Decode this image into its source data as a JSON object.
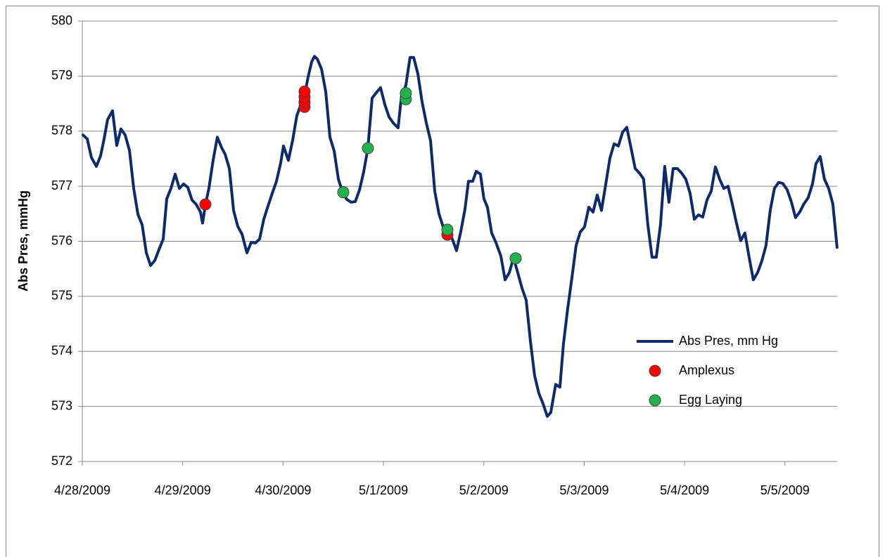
{
  "chart_data": {
    "type": "line",
    "ylabel": "Abs Pres, mmHg",
    "xlim": [
      39931,
      39938.52
    ],
    "xticks": [
      {
        "value": 39931,
        "label": "4/28/2009"
      },
      {
        "value": 39932,
        "label": "4/29/2009"
      },
      {
        "value": 39933,
        "label": "4/30/2009"
      },
      {
        "value": 39934,
        "label": "5/1/2009"
      },
      {
        "value": 39935,
        "label": "5/2/2009"
      },
      {
        "value": 39936,
        "label": "5/3/2009"
      },
      {
        "value": 39937,
        "label": "5/4/2009"
      },
      {
        "value": 39938,
        "label": "5/5/2009"
      }
    ],
    "ylim": [
      572,
      580
    ],
    "yticks": [
      572,
      573,
      574,
      575,
      576,
      577,
      578,
      579,
      580
    ],
    "grid": true,
    "legend": "right",
    "series": [
      {
        "name": "Abs Pres, mm Hg",
        "type": "line",
        "color": "#0d2a6b",
        "x": [
          39931.007,
          39931.049,
          39931.091,
          39931.14,
          39931.182,
          39931.217,
          39931.252,
          39931.301,
          39931.343,
          39931.385,
          39931.427,
          39931.47,
          39931.512,
          39931.554,
          39931.596,
          39931.638,
          39931.68,
          39931.722,
          39931.764,
          39931.806,
          39931.841,
          39931.883,
          39931.925,
          39931.967,
          39932.009,
          39932.051,
          39932.093,
          39932.135,
          39932.177,
          39932.198,
          39932.226,
          39932.261,
          39932.303,
          39932.345,
          39932.388,
          39932.423,
          39932.465,
          39932.507,
          39932.549,
          39932.591,
          39932.64,
          39932.682,
          39932.724,
          39932.766,
          39932.808,
          39932.85,
          39932.892,
          39932.934,
          39932.976,
          39933.004,
          39933.053,
          39933.095,
          39933.137,
          39933.179,
          39933.214,
          39933.249,
          39933.285,
          39933.313,
          39933.341,
          39933.383,
          39933.425,
          39933.467,
          39933.509,
          39933.551,
          39933.593,
          39933.635,
          39933.677,
          39933.719,
          39933.761,
          39933.803,
          39933.845,
          39933.887,
          39933.929,
          39933.971,
          39934.013,
          39934.055,
          39934.097,
          39934.146,
          39934.181,
          39934.223,
          39934.265,
          39934.301,
          39934.343,
          39934.385,
          39934.427,
          39934.469,
          39934.511,
          39934.553,
          39934.595,
          39934.637,
          39934.686,
          39934.728,
          39934.77,
          39934.812,
          39934.847,
          39934.889,
          39934.924,
          39934.966,
          39935.001,
          39935.036,
          39935.078,
          39935.12,
          39935.17,
          39935.212,
          39935.254,
          39935.296,
          39935.338,
          39935.38,
          39935.422,
          39935.464,
          39935.506,
          39935.548,
          39935.59,
          39935.632,
          39935.667,
          39935.716,
          39935.758,
          39935.793,
          39935.835,
          39935.877,
          39935.919,
          39935.961,
          39936.003,
          39936.046,
          39936.088,
          39936.13,
          39936.172,
          39936.214,
          39936.256,
          39936.298,
          39936.34,
          39936.382,
          39936.424,
          39936.466,
          39936.508,
          39936.55,
          39936.592,
          39936.634,
          39936.676,
          39936.718,
          39936.76,
          39936.802,
          39936.844,
          39936.886,
          39936.928,
          39936.97,
          39937.012,
          39937.055,
          39937.097,
          39937.139,
          39937.181,
          39937.223,
          39937.265,
          39937.307,
          39937.349,
          39937.391,
          39937.433,
          39937.475,
          39937.517,
          39937.559,
          39937.601,
          39937.643,
          39937.685,
          39937.727,
          39937.769,
          39937.811,
          39937.853,
          39937.895,
          39937.937,
          39937.979,
          39938.021,
          39938.063,
          39938.105,
          39938.147,
          39938.189,
          39938.231,
          39938.274,
          39938.309,
          39938.351,
          39938.393,
          39938.435,
          39938.477,
          39938.519
        ],
        "values": [
          577.93,
          577.86,
          577.52,
          577.36,
          577.55,
          577.86,
          578.21,
          578.37,
          577.74,
          578.04,
          577.93,
          577.65,
          576.96,
          576.49,
          576.3,
          575.79,
          575.56,
          575.65,
          575.85,
          576.04,
          576.77,
          576.96,
          577.22,
          576.96,
          577.04,
          576.98,
          576.75,
          576.67,
          576.53,
          576.33,
          576.66,
          576.96,
          577.47,
          577.89,
          577.7,
          577.58,
          577.32,
          576.56,
          576.27,
          576.13,
          575.79,
          575.98,
          575.97,
          576.04,
          576.4,
          576.64,
          576.87,
          577.09,
          577.42,
          577.73,
          577.47,
          577.83,
          578.28,
          578.49,
          578.65,
          578.98,
          579.26,
          579.36,
          579.31,
          579.13,
          578.72,
          577.89,
          577.64,
          577.13,
          576.89,
          576.76,
          576.71,
          576.72,
          576.93,
          577.26,
          577.69,
          578.6,
          578.7,
          578.79,
          578.49,
          578.26,
          578.15,
          578.06,
          578.66,
          578.83,
          579.34,
          579.34,
          579.04,
          578.53,
          578.15,
          577.83,
          576.91,
          576.5,
          576.26,
          576.17,
          576.04,
          575.83,
          576.17,
          576.58,
          577.09,
          577.09,
          577.27,
          577.22,
          576.77,
          576.62,
          576.15,
          575.98,
          575.73,
          575.3,
          575.43,
          575.7,
          575.43,
          575.15,
          574.93,
          574.19,
          573.56,
          573.24,
          573.05,
          572.82,
          572.89,
          573.4,
          573.35,
          574.13,
          574.77,
          575.33,
          575.92,
          576.17,
          576.26,
          576.62,
          576.53,
          576.84,
          576.56,
          577.03,
          577.51,
          577.77,
          577.73,
          577.98,
          578.07,
          577.7,
          577.32,
          577.24,
          577.13,
          576.3,
          575.71,
          575.71,
          576.3,
          577.36,
          576.71,
          577.32,
          577.32,
          577.24,
          577.13,
          576.87,
          576.4,
          576.48,
          576.44,
          576.75,
          576.91,
          577.35,
          577.13,
          576.96,
          577.0,
          576.68,
          576.33,
          576.01,
          576.15,
          575.71,
          575.3,
          575.43,
          575.64,
          575.92,
          576.56,
          576.96,
          577.07,
          577.05,
          576.94,
          576.72,
          576.43,
          576.53,
          576.68,
          576.79,
          577.04,
          577.41,
          577.54,
          577.13,
          576.96,
          576.68,
          575.89
        ]
      },
      {
        "name": "Amplexus",
        "type": "scatter",
        "color": "#ff0000",
        "x": [
          39932.226,
          39933.214,
          39933.214,
          39933.214,
          39933.214,
          39934.637
        ],
        "values": [
          576.67,
          578.44,
          578.53,
          578.62,
          578.72,
          576.12
        ]
      },
      {
        "name": "Egg Laying",
        "type": "scatter",
        "color": "#22b14c",
        "x": [
          39933.6,
          39933.845,
          39934.223,
          39934.223,
          39934.637,
          39935.317
        ],
        "values": [
          576.89,
          577.69,
          578.58,
          578.69,
          576.21,
          575.69
        ]
      }
    ]
  }
}
